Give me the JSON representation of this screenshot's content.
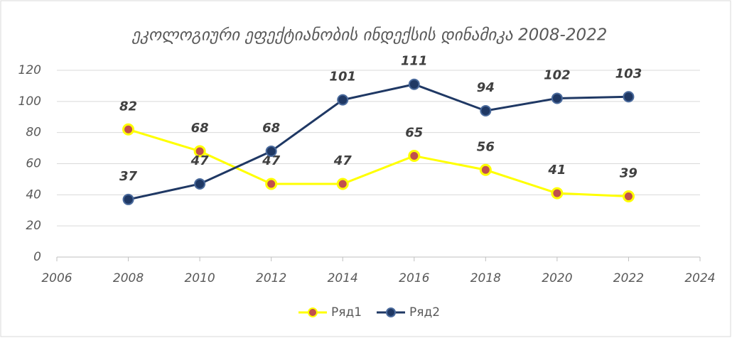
{
  "chart_data": {
    "type": "line",
    "title": "ეკოლოგიური ეფექტიანობის ინდექსის დინამიკა 2008-2022",
    "x": [
      2008,
      2010,
      2012,
      2014,
      2016,
      2018,
      2020,
      2022
    ],
    "series": [
      {
        "name": "Ряд1",
        "color": "#ffff00",
        "values": [
          82,
          68,
          47,
          47,
          65,
          56,
          41,
          39
        ]
      },
      {
        "name": "Ряд2",
        "color": "#1f3864",
        "values": [
          37,
          47,
          68,
          101,
          111,
          94,
          102,
          103
        ]
      }
    ],
    "xlim": [
      2006,
      2024
    ],
    "xticks": [
      2006,
      2008,
      2010,
      2012,
      2014,
      2016,
      2018,
      2020,
      2022,
      2024
    ],
    "ylim": [
      0,
      120
    ],
    "yticks": [
      0,
      20,
      40,
      60,
      80,
      100,
      120
    ],
    "grid": true,
    "legend": "bottom"
  }
}
